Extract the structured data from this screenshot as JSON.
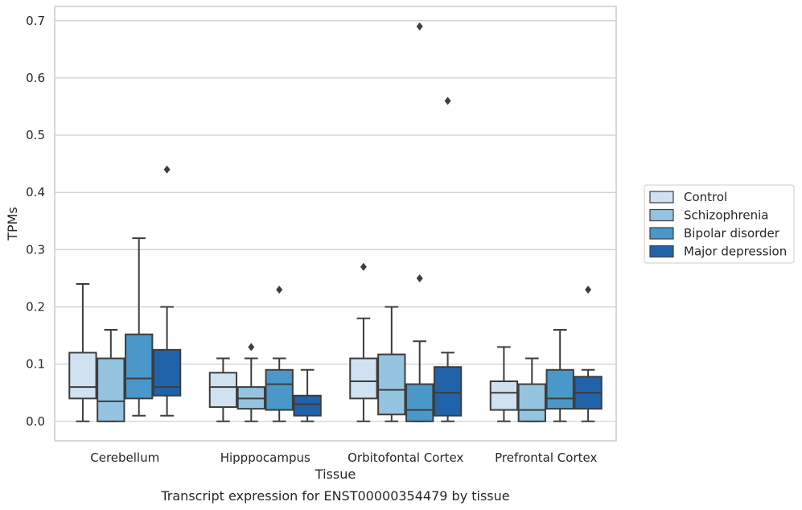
{
  "chart_data": {
    "type": "box",
    "xlabel": "Tissue",
    "ylabel": "TPMs",
    "caption": "Transcript expression for ENST00000354479 by tissue",
    "ylim": [
      -0.034,
      0.725
    ],
    "yticks": [
      "0.0",
      "0.1",
      "0.2",
      "0.3",
      "0.4",
      "0.5",
      "0.6",
      "0.7"
    ],
    "grid": "horizontal",
    "legend_position": "right",
    "categories": [
      "Cerebellum",
      "Hipppocampus",
      "Orbitofontal Cortex",
      "Prefrontal Cortex"
    ],
    "series": [
      {
        "name": "Control",
        "color": "#d0e1f2",
        "boxes": [
          {
            "whislo": 0.0,
            "q1": 0.04,
            "med": 0.06,
            "q3": 0.12,
            "whishi": 0.24,
            "fliers": []
          },
          {
            "whislo": 0.0,
            "q1": 0.025,
            "med": 0.06,
            "q3": 0.085,
            "whishi": 0.11,
            "fliers": []
          },
          {
            "whislo": 0.0,
            "q1": 0.04,
            "med": 0.07,
            "q3": 0.11,
            "whishi": 0.18,
            "fliers": [
              0.27
            ]
          },
          {
            "whislo": 0.0,
            "q1": 0.02,
            "med": 0.05,
            "q3": 0.07,
            "whishi": 0.13,
            "fliers": []
          }
        ]
      },
      {
        "name": "Schizophrenia",
        "color": "#94c4df",
        "boxes": [
          {
            "whislo": 0.0,
            "q1": 0.0,
            "med": 0.035,
            "q3": 0.11,
            "whishi": 0.16,
            "fliers": []
          },
          {
            "whislo": 0.0,
            "q1": 0.022,
            "med": 0.04,
            "q3": 0.06,
            "whishi": 0.11,
            "fliers": [
              0.13
            ]
          },
          {
            "whislo": 0.0,
            "q1": 0.012,
            "med": 0.055,
            "q3": 0.117,
            "whishi": 0.2,
            "fliers": []
          },
          {
            "whislo": 0.0,
            "q1": 0.0,
            "med": 0.02,
            "q3": 0.065,
            "whishi": 0.11,
            "fliers": []
          }
        ]
      },
      {
        "name": "Bipolar disorder",
        "color": "#4a98c9",
        "boxes": [
          {
            "whislo": 0.01,
            "q1": 0.04,
            "med": 0.075,
            "q3": 0.152,
            "whishi": 0.32,
            "fliers": []
          },
          {
            "whislo": 0.0,
            "q1": 0.02,
            "med": 0.065,
            "q3": 0.09,
            "whishi": 0.11,
            "fliers": [
              0.23
            ]
          },
          {
            "whislo": 0.0,
            "q1": 0.0,
            "med": 0.02,
            "q3": 0.065,
            "whishi": 0.14,
            "fliers": [
              0.25,
              0.69
            ]
          },
          {
            "whislo": 0.0,
            "q1": 0.022,
            "med": 0.04,
            "q3": 0.09,
            "whishi": 0.16,
            "fliers": []
          }
        ]
      },
      {
        "name": "Major depression",
        "color": "#2163aa",
        "boxes": [
          {
            "whislo": 0.01,
            "q1": 0.045,
            "med": 0.06,
            "q3": 0.125,
            "whishi": 0.2,
            "fliers": [
              0.44
            ]
          },
          {
            "whislo": 0.0,
            "q1": 0.01,
            "med": 0.03,
            "q3": 0.045,
            "whishi": 0.09,
            "fliers": []
          },
          {
            "whislo": 0.0,
            "q1": 0.01,
            "med": 0.05,
            "q3": 0.095,
            "whishi": 0.12,
            "fliers": [
              0.56
            ]
          },
          {
            "whislo": 0.0,
            "q1": 0.022,
            "med": 0.05,
            "q3": 0.078,
            "whishi": 0.09,
            "fliers": [
              0.23
            ]
          }
        ]
      }
    ]
  }
}
